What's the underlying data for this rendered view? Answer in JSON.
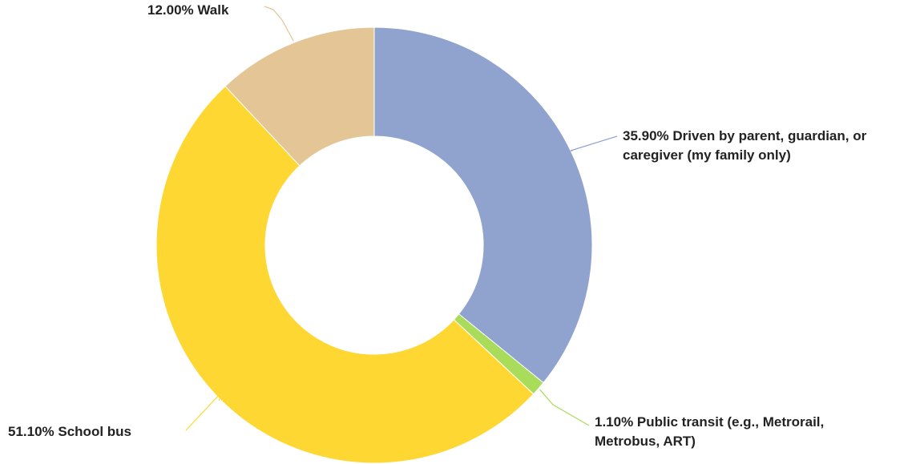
{
  "chart_data": {
    "type": "pie",
    "donut": true,
    "unit": "%",
    "slices": [
      {
        "label": "35.90% Driven by parent, guardian, or caregiver (my family only)",
        "value": 35.9,
        "color": "#8FA3CE"
      },
      {
        "label": "1.10% Public transit (e.g., Metrorail, Metrobus, ART)",
        "value": 1.1,
        "color": "#A8DC5A"
      },
      {
        "label": "51.10% School bus",
        "value": 51.1,
        "color": "#FFD732"
      },
      {
        "label": "12.00% Walk",
        "value": 12.0,
        "color": "#E3C596"
      }
    ],
    "start_angle_deg": 0,
    "direction": "clockwise",
    "legend": "none"
  }
}
